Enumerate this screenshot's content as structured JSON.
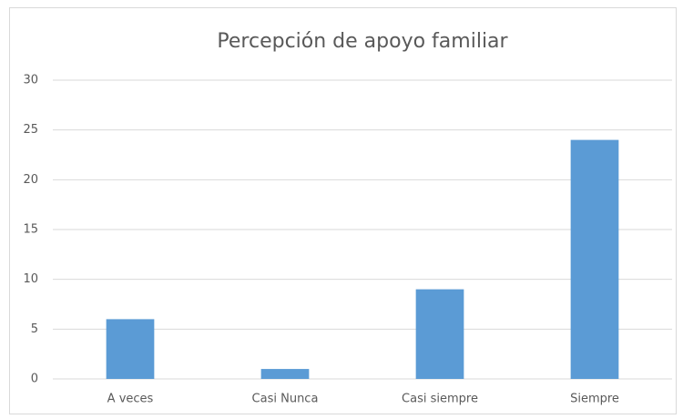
{
  "chart_data": {
    "type": "bar",
    "title": "Percepción de apoyo familiar",
    "categories": [
      "A veces",
      "Casi Nunca",
      "Casi siempre",
      "Siempre"
    ],
    "values": [
      6,
      1,
      9,
      24
    ],
    "color": "#5b9bd5",
    "ylim": [
      0,
      30
    ],
    "yticks": [
      0,
      5,
      10,
      15,
      20,
      25,
      30
    ],
    "grid": true
  }
}
